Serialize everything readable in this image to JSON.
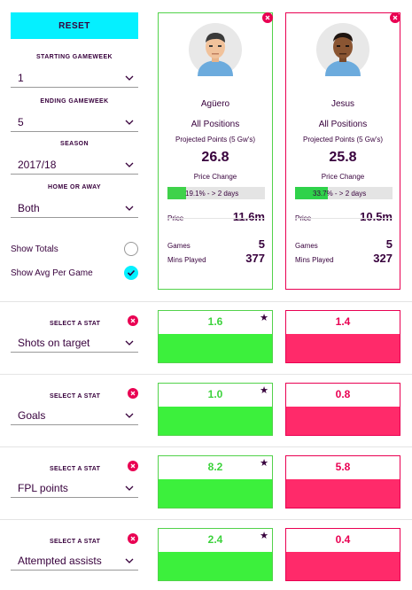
{
  "sidebar": {
    "reset_label": "RESET",
    "starting_gameweek": {
      "label": "STARTING GAMEWEEK",
      "value": "1"
    },
    "ending_gameweek": {
      "label": "ENDING GAMEWEEK",
      "value": "5"
    },
    "season": {
      "label": "SEASON",
      "value": "2017/18"
    },
    "home_or_away": {
      "label": "HOME OR AWAY",
      "value": "Both"
    },
    "show_totals": {
      "label": "Show Totals",
      "checked": false
    },
    "show_avg": {
      "label": "Show Avg Per Game",
      "checked": true
    }
  },
  "players": [
    {
      "name": "Agüero",
      "positions": "All Positions",
      "projected_label": "Projected Points (5 Gw's)",
      "projected_value": "26.8",
      "price_change_label": "Price Change",
      "price_change_text": "19.1% - > 2 days",
      "price_change_fraction": 0.191,
      "price_label": "Price",
      "price_value": "11.6m",
      "games_label": "Games",
      "games_value": "5",
      "mins_label": "Mins Played",
      "mins_value": "377",
      "color": "#52d24a"
    },
    {
      "name": "Jesus",
      "positions": "All Positions",
      "projected_label": "Projected Points (5 Gw's)",
      "projected_value": "25.8",
      "price_change_label": "Price Change",
      "price_change_text": "33.7% - > 2 days",
      "price_change_fraction": 0.337,
      "price_label": "Price",
      "price_value": "10.5m",
      "games_label": "Games",
      "games_value": "5",
      "mins_label": "Mins Played",
      "mins_value": "327",
      "color": "#e90052"
    }
  ],
  "stats": [
    {
      "select_label": "SELECT A STAT",
      "stat": "Shots on target",
      "p1": "1.6",
      "p2": "1.4",
      "p1_fill": 0.55,
      "p2_fill": 0.55,
      "leader": "p1"
    },
    {
      "select_label": "SELECT A STAT",
      "stat": "Goals",
      "p1": "1.0",
      "p2": "0.8",
      "p1_fill": 0.55,
      "p2_fill": 0.55,
      "leader": "p1"
    },
    {
      "select_label": "SELECT A STAT",
      "stat": "FPL points",
      "p1": "8.2",
      "p2": "5.8",
      "p1_fill": 0.55,
      "p2_fill": 0.55,
      "leader": "p1"
    },
    {
      "select_label": "SELECT A STAT",
      "stat": "Attempted assists",
      "p1": "2.4",
      "p2": "0.4",
      "p1_fill": 0.55,
      "p2_fill": 0.55,
      "leader": "p1"
    }
  ],
  "icons": {
    "remove": "close-icon",
    "dropdown": "chevron-down-icon",
    "check": "check-icon",
    "leader": "star-icon"
  },
  "colors": {
    "cyan": "#05f0ff",
    "green": "#52d24a",
    "pink": "#e90052",
    "navy": "#37003c"
  }
}
